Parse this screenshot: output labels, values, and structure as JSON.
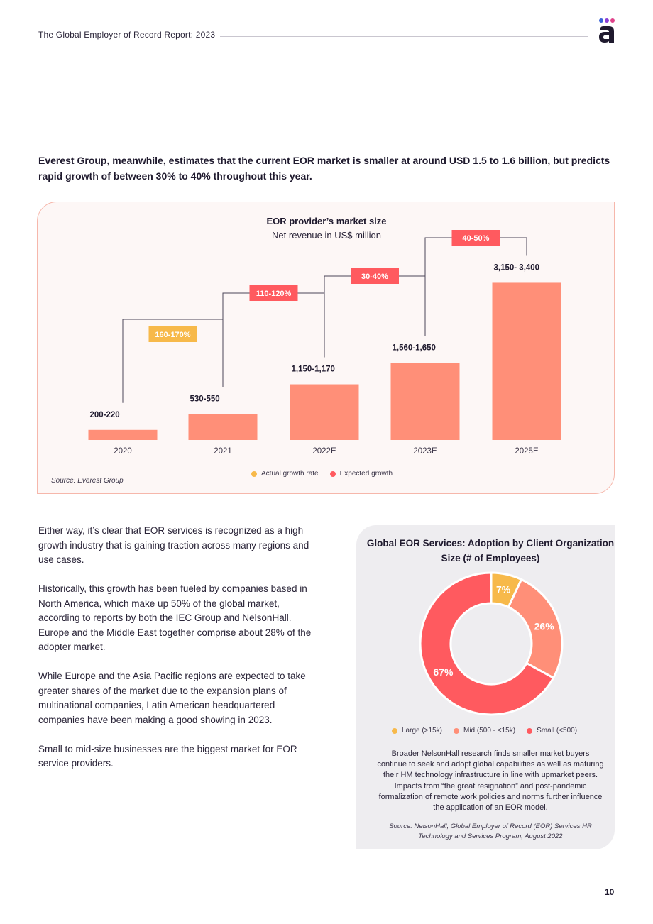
{
  "header": {
    "title": "The Global Employer of Record Report: 2023"
  },
  "intro": "Everest Group, meanwhile, estimates that the current EOR market is smaller at around USD 1.5 to 1.6 billion, but predicts rapid growth of between 30% to 40% throughout this year.",
  "colors": {
    "bar": "#ff8f78",
    "actual": "#f7b94a",
    "expected": "#ff5a5f",
    "donut_large": "#f7b94a",
    "donut_mid": "#ff8f78",
    "donut_small": "#ff5a5f",
    "panel_border": "#f6b7ab"
  },
  "bar_chart": {
    "source": "Source: Everest Group",
    "legend": {
      "actual": "Actual growth rate",
      "expected": "Expected growth"
    }
  },
  "body_paragraphs": [
    "Either way, it’s clear that EOR services is recognized as a high growth industry that is gaining traction across many regions and use cases.",
    "Historically, this growth has been fueled by companies based in North America, which make up 50% of the global market, according to reports by both the IEC Group and NelsonHall. Europe and the Middle East together comprise about 28% of the adopter market.",
    "While Europe and the Asia Pacific regions are expected to take greater shares of the market due to the expansion plans of multinational companies, Latin American headquartered companies have been making a good showing in 2023.",
    "Small to mid-size businesses are the biggest market for EOR service providers."
  ],
  "donut_panel": {
    "title": "Global EOR Services: Adoption by Client Organization Size (# of Employees)",
    "legend": [
      "Large (>15k)",
      "Mid (500 - <15k)",
      "Small (<500)"
    ],
    "description": "Broader NelsonHall research finds smaller market buyers continue to seek and adopt global capabilities as well as maturing their HM technology infrastructure in line with upmarket peers. Impacts from “the great resignation” and post-pandemic formalization of remote work policies and norms further influence the application of an EOR model.",
    "source": "Source: NelsonHall, Global Employer of Record (EOR) Services HR Technology and Services Program, August 2022"
  },
  "page_number": "10",
  "chart_data": [
    {
      "type": "bar",
      "title": "EOR provider’s market size",
      "subtitle": "Net revenue in US$ million",
      "categories": [
        "2020",
        "2021",
        "2022E",
        "2023E",
        "2025E"
      ],
      "values": [
        210,
        540,
        1160,
        1605,
        3275
      ],
      "value_labels": [
        "200-220",
        "530-550",
        "1,150-1,170",
        "1,560-1,650",
        "3,150- 3,400"
      ],
      "growth_annotations": [
        {
          "from": "2020",
          "to": "2021",
          "label": "160-170%",
          "kind": "actual"
        },
        {
          "from": "2021",
          "to": "2022E",
          "label": "110-120%",
          "kind": "expected"
        },
        {
          "from": "2022E",
          "to": "2023E",
          "label": "30-40%",
          "kind": "expected"
        },
        {
          "from": "2023E",
          "to": "2025E",
          "label": "40-50%",
          "kind": "expected"
        }
      ],
      "legend": [
        "Actual growth rate",
        "Expected growth"
      ],
      "ylim": [
        0,
        3400
      ],
      "grid": false
    },
    {
      "type": "pie",
      "title": "Global EOR Services: Adoption by Client Organization Size (# of Employees)",
      "categories": [
        "Large (>15k)",
        "Mid (500 - <15k)",
        "Small (<500)"
      ],
      "values": [
        7,
        26,
        67
      ],
      "value_labels": [
        "7%",
        "26%",
        "67%"
      ],
      "legend_position": "bottom"
    }
  ]
}
